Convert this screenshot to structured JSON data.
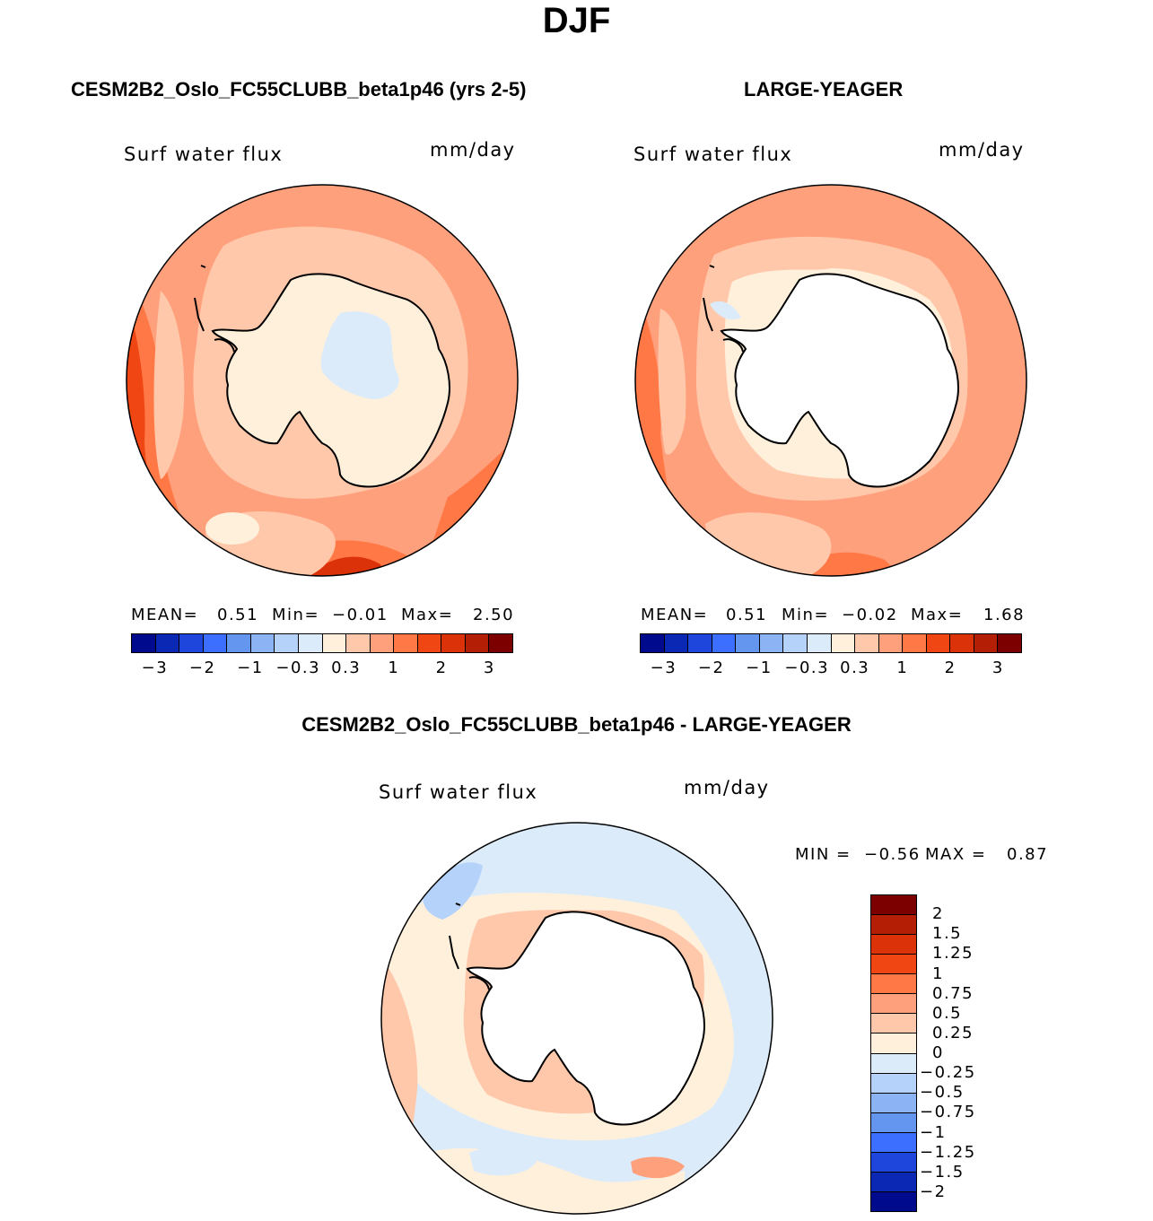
{
  "title": "DJF",
  "panels": {
    "model": {
      "title": "CESM2B2_Oslo_FC55CLUBB_beta1p46 (yrs 2-5)",
      "field": "Surf water flux",
      "units": "mm/day",
      "mean_label": "MEAN=",
      "mean": "0.51",
      "min_label": "Min=",
      "min": "−0.01",
      "max_label": "Max=",
      "max": "2.50"
    },
    "obs": {
      "title": "LARGE-YEAGER",
      "field": "Surf water flux",
      "units": "mm/day",
      "mean_label": "MEAN=",
      "mean": "0.51",
      "min_label": "Min=",
      "min": "−0.02",
      "max_label": "Max=",
      "max": "1.68"
    },
    "diff": {
      "title": "CESM2B2_Oslo_FC55CLUBB_beta1p46 - LARGE-YEAGER",
      "field": "Surf water flux",
      "units": "mm/day",
      "min_label": "MIN =",
      "min": "−0.56",
      "max_label": "MAX =",
      "max": "0.87"
    }
  },
  "colorbar_main": {
    "colors": [
      "#000a8c",
      "#0a28b4",
      "#1e46dc",
      "#3c6eff",
      "#6496f0",
      "#8cb4f5",
      "#b4d2fa",
      "#dcebfa",
      "#fff0dc",
      "#ffc8aa",
      "#ffa07d",
      "#ff7846",
      "#f04614",
      "#dc320a",
      "#b41e05",
      "#7d0000"
    ],
    "ticks": [
      "−3",
      "−2",
      "−1",
      "−0.3",
      "0.3",
      "1",
      "2",
      "3"
    ]
  },
  "colorbar_diff": {
    "colors": [
      "#7d0000",
      "#b41e05",
      "#dc320a",
      "#f04614",
      "#ff7846",
      "#ffa07d",
      "#ffc8aa",
      "#fff0dc",
      "#dcebfa",
      "#b4d2fa",
      "#8cb4f5",
      "#6496f0",
      "#3c6eff",
      "#1e46dc",
      "#0a28b4",
      "#000a8c"
    ],
    "ticks": [
      "2",
      "1.5",
      "1.25",
      "1",
      "0.75",
      "0.5",
      "0.25",
      "0",
      "−0.25",
      "−0.5",
      "−0.75",
      "−1",
      "−1.25",
      "−1.5",
      "−2"
    ]
  }
}
